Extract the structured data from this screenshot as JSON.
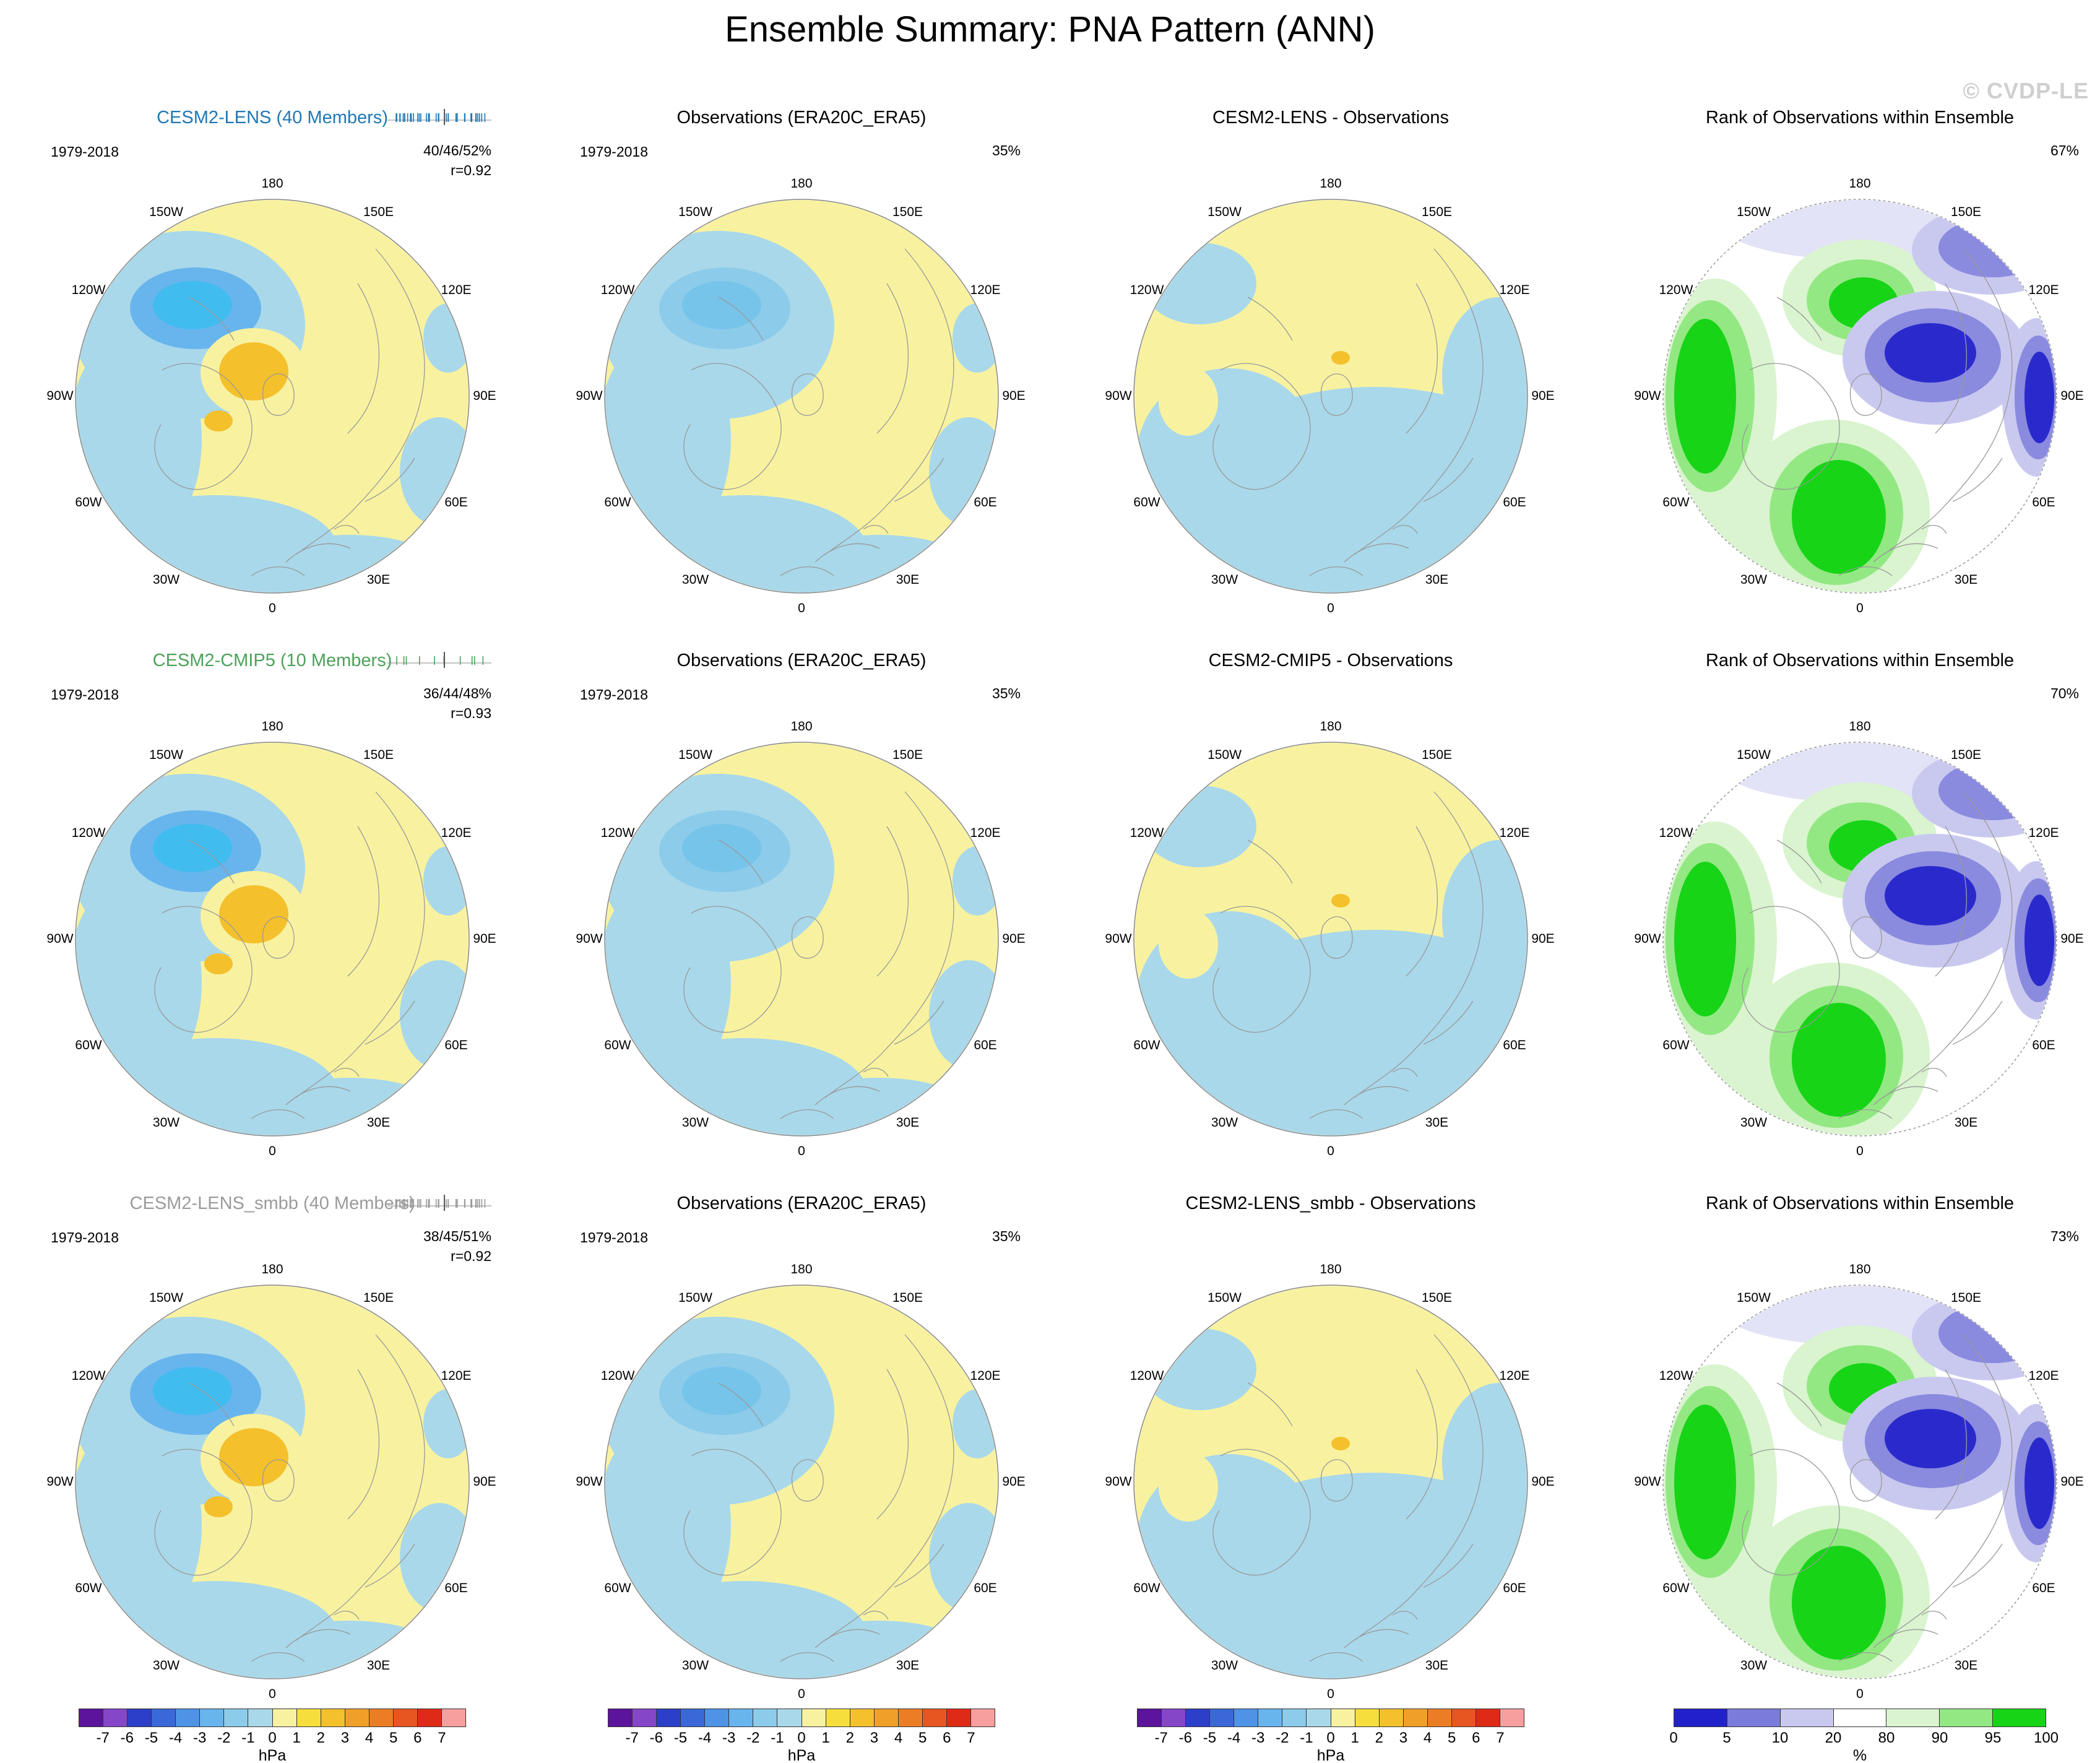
{
  "title": "Ensemble Summary: PNA Pattern (ANN)",
  "watermark": "© CVDP-LE",
  "lon_labels": [
    "180",
    "150E",
    "120E",
    "90E",
    "60E",
    "30E",
    "0",
    "30W",
    "60W",
    "90W",
    "120W",
    "150W"
  ],
  "rows": [
    {
      "panels": [
        {
          "title": "CESM2-LENS (40 Members)",
          "title_color": "#1F78B4",
          "years": "1979-2018",
          "stat1": "40/46/52%",
          "stat2": "r=0.92",
          "rug": true,
          "members": 40
        },
        {
          "title": "Observations (ERA20C_ERA5)",
          "title_color": "#000000",
          "years": "1979-2018",
          "stat1": "35%"
        },
        {
          "title": "CESM2-LENS - Observations",
          "title_color": "#000000"
        },
        {
          "title": "Rank of Observations within Ensemble",
          "title_color": "#000000",
          "stat1": "67%"
        }
      ]
    },
    {
      "panels": [
        {
          "title": "CESM2-CMIP5 (10 Members)",
          "title_color": "#4CA25A",
          "years": "1979-2018",
          "stat1": "36/44/48%",
          "stat2": "r=0.93",
          "rug": true,
          "members": 10
        },
        {
          "title": "Observations (ERA20C_ERA5)",
          "title_color": "#000000",
          "years": "1979-2018",
          "stat1": "35%"
        },
        {
          "title": "CESM2-CMIP5 - Observations",
          "title_color": "#000000"
        },
        {
          "title": "Rank of Observations within Ensemble",
          "title_color": "#000000",
          "stat1": "70%"
        }
      ]
    },
    {
      "panels": [
        {
          "title": "CESM2-LENS_smbb (40 Members)",
          "title_color": "#9B9B9B",
          "years": "1979-2018",
          "stat1": "38/45/51%",
          "stat2": "r=0.92",
          "rug": true,
          "members": 40
        },
        {
          "title": "Observations (ERA20C_ERA5)",
          "title_color": "#000000",
          "years": "1979-2018",
          "stat1": "35%"
        },
        {
          "title": "CESM2-LENS_smbb - Observations",
          "title_color": "#000000"
        },
        {
          "title": "Rank of Observations within Ensemble",
          "title_color": "#000000",
          "stat1": "73%"
        }
      ]
    }
  ],
  "colorbars": {
    "hpa": {
      "unit": "hPa",
      "ticks": [
        "-7",
        "-6",
        "-5",
        "-4",
        "-3",
        "-2",
        "-1",
        "0",
        "1",
        "2",
        "3",
        "4",
        "5",
        "6",
        "7"
      ],
      "colors": [
        "#5C149C",
        "#8646C8",
        "#2C3FC8",
        "#3A68D8",
        "#4E93E6",
        "#68B5EE",
        "#8CCBEA",
        "#A9D8EA",
        "#F8F2A0",
        "#F6DF3C",
        "#F4C02C",
        "#F0A028",
        "#EC7D24",
        "#E75620",
        "#E02A18",
        "#F79E9E"
      ]
    },
    "rank": {
      "unit": "%",
      "ticks": [
        "0",
        "5",
        "10",
        "20",
        "80",
        "90",
        "95",
        "100"
      ],
      "colors": [
        "#2121CC",
        "#7B7BDC",
        "#C9C9F0",
        "#FFFFFF",
        "#D9F4CF",
        "#93E883",
        "#17D417"
      ]
    }
  },
  "chart_data": {
    "type": "heatmap",
    "title": "Ensemble Summary: PNA Pattern (ANN)",
    "layout": "3 rows x 4 columns of north polar stereographic maps",
    "columns": [
      "Ensemble mean pattern",
      "Observations (ERA20C_ERA5)",
      "Ensemble - Observations difference",
      "Rank of Observations within Ensemble"
    ],
    "rows": [
      {
        "ensemble": "CESM2-LENS",
        "members": 40,
        "period": "1979-2018",
        "pattern_variance": "40/46/52%",
        "pattern_correlation": 0.92,
        "obs_variance": "35%",
        "rank_value": "67%"
      },
      {
        "ensemble": "CESM2-CMIP5",
        "members": 10,
        "period": "1979-2018",
        "pattern_variance": "36/44/48%",
        "pattern_correlation": 0.93,
        "obs_variance": "35%",
        "rank_value": "70%"
      },
      {
        "ensemble": "CESM2-LENS_smbb",
        "members": 40,
        "period": "1979-2018",
        "pattern_variance": "38/45/51%",
        "pattern_correlation": 0.92,
        "obs_variance": "35%",
        "rank_value": "73%"
      }
    ],
    "longitude_ring_labels": [
      "180",
      "150E",
      "120E",
      "90E",
      "60E",
      "30E",
      "0",
      "30W",
      "60W",
      "90W",
      "120W",
      "150W"
    ],
    "colorbar_hpa": {
      "unit": "hPa",
      "ticks": [
        -7,
        -6,
        -5,
        -4,
        -3,
        -2,
        -1,
        0,
        1,
        2,
        3,
        4,
        5,
        6,
        7
      ]
    },
    "colorbar_rank": {
      "unit": "%",
      "ticks": [
        0,
        5,
        10,
        20,
        80,
        90,
        95,
        100
      ]
    }
  }
}
